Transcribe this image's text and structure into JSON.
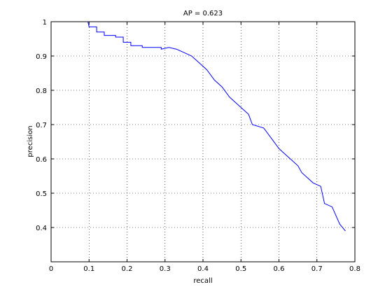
{
  "chart_data": {
    "type": "line",
    "title": "AP = 0.623",
    "x_label": "recall",
    "y_label": "precision",
    "x": [
      0.097,
      0.1,
      0.12,
      0.12,
      0.14,
      0.14,
      0.17,
      0.17,
      0.19,
      0.19,
      0.21,
      0.21,
      0.24,
      0.24,
      0.29,
      0.29,
      0.31,
      0.33,
      0.35,
      0.37,
      0.39,
      0.41,
      0.43,
      0.45,
      0.47,
      0.5,
      0.52,
      0.53,
      0.56,
      0.58,
      0.6,
      0.62,
      0.65,
      0.66,
      0.69,
      0.71,
      0.72,
      0.74,
      0.76,
      0.775
    ],
    "series": [
      {
        "color": "#0000ff",
        "values": [
          1.0,
          0.985,
          0.985,
          0.97,
          0.97,
          0.96,
          0.96,
          0.955,
          0.955,
          0.94,
          0.94,
          0.93,
          0.93,
          0.925,
          0.925,
          0.92,
          0.925,
          0.92,
          0.91,
          0.9,
          0.88,
          0.86,
          0.83,
          0.81,
          0.78,
          0.75,
          0.73,
          0.7,
          0.69,
          0.66,
          0.63,
          0.61,
          0.58,
          0.56,
          0.53,
          0.52,
          0.47,
          0.46,
          0.41,
          0.39
        ]
      }
    ],
    "xlim": [
      0,
      0.8
    ],
    "ylim": [
      0.3,
      1
    ],
    "xticks": [
      0,
      0.1,
      0.2,
      0.3,
      0.4,
      0.5,
      0.6,
      0.7,
      0.8
    ],
    "yticks": [
      0.4,
      0.5,
      0.6,
      0.7,
      0.8,
      0.9,
      1
    ],
    "grid": true
  }
}
